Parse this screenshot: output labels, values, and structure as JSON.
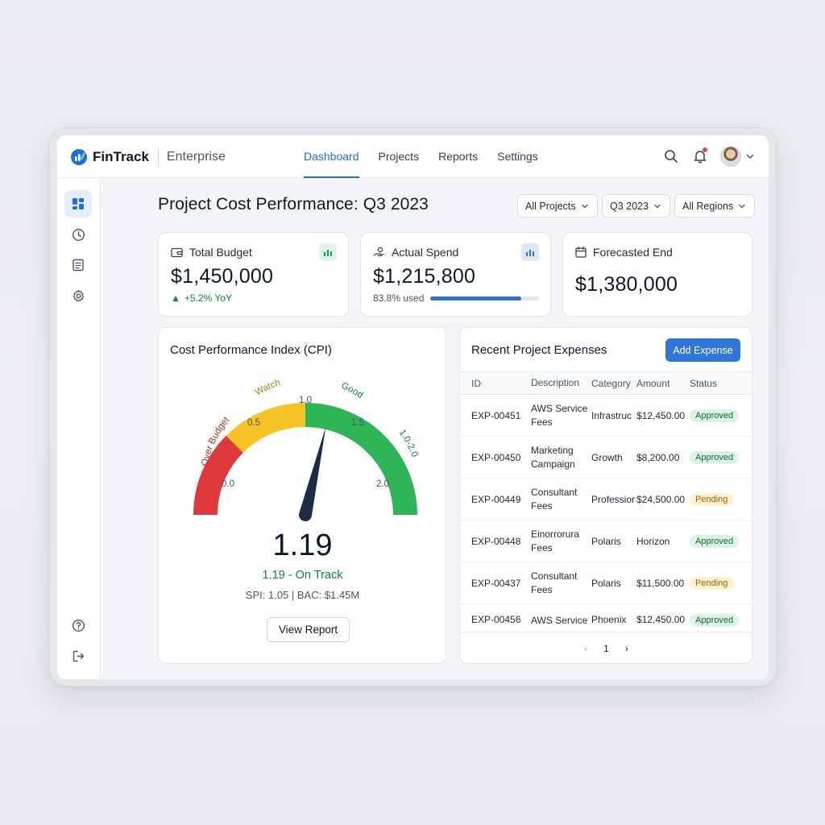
{
  "brand": {
    "name": "FinTrack",
    "edition": "Enterprise"
  },
  "nav": [
    {
      "label": "Dashboard",
      "active": true
    },
    {
      "label": "Projects"
    },
    {
      "label": "Reports"
    },
    {
      "label": "Settings"
    }
  ],
  "header_icons": [
    "search-icon",
    "bell-icon",
    "avatar",
    "chevron-down-icon"
  ],
  "sidebar": {
    "items": [
      "dashboard-icon",
      "clock-icon",
      "document-icon",
      "gear-icon"
    ],
    "bottom": [
      "help-icon",
      "logout-icon"
    ]
  },
  "page": {
    "title": "Project Cost Performance: Q3 2023"
  },
  "filters": {
    "project": "All Projects",
    "quarter": "Q3 2023",
    "region": "All Regions"
  },
  "kpis": {
    "budget": {
      "label": "Total Budget",
      "value": "$1,450,000",
      "trend": "+5.2% YoY"
    },
    "spend": {
      "label": "Actual Spend",
      "value": "$1,215,800",
      "used_text": "83.8% used",
      "used_fraction": 0.838
    },
    "forecast": {
      "label": "Forecasted End",
      "value": "$1,380,000"
    }
  },
  "cpi": {
    "title": "Cost Performance Index (CPI)",
    "value": "1.19",
    "value_num": 1.19,
    "status": "1.19 - On Track",
    "meta": "SPI: 1.05 | BAC: $1.45M",
    "zones": {
      "over": "Over Budget",
      "watch": "Watch",
      "good": "Good",
      "range": "1.0-2.0"
    },
    "ticks": [
      "0.0",
      "0.5",
      "1.0",
      "1.5",
      "2.0"
    ],
    "colors": {
      "red": "#e0393b",
      "yellow": "#f6c525",
      "green": "#2fb457",
      "needle": "#1b2d45"
    },
    "button": "View Report"
  },
  "expenses": {
    "title": "Recent Project Expenses",
    "add_button": "Add Expense",
    "columns": [
      "ID",
      "Description",
      "Category",
      "Amount",
      "Status"
    ],
    "rows": [
      {
        "id": "EXP-00451",
        "desc": "AWS Service Fees",
        "cat": "Infrastruc",
        "amount": "$12,450.00",
        "status": "Approved"
      },
      {
        "id": "EXP-00450",
        "desc": "Marketing Campaign",
        "cat": "Growth",
        "amount": "$8,200.00",
        "status": "Approved"
      },
      {
        "id": "EXP-00449",
        "desc": "Consultant Fees",
        "cat": "Professior",
        "amount": "$24,500.00",
        "status": "Pending"
      },
      {
        "id": "EXP-00448",
        "desc": "Einorrorura Fees",
        "cat": "Polaris",
        "amount": "Horizon",
        "status": "Approved"
      },
      {
        "id": "EXP-00437",
        "desc": "Consultant Fees",
        "cat": "Polaris",
        "amount": "$11,500.00",
        "status": "Pending"
      },
      {
        "id": "EXP-00456",
        "desc": "AWS Service",
        "cat": "Phoenix",
        "amount": "$12,450.00",
        "status": "Approved"
      }
    ],
    "pager": {
      "prev": "‹",
      "page": "1",
      "next": "›"
    }
  }
}
